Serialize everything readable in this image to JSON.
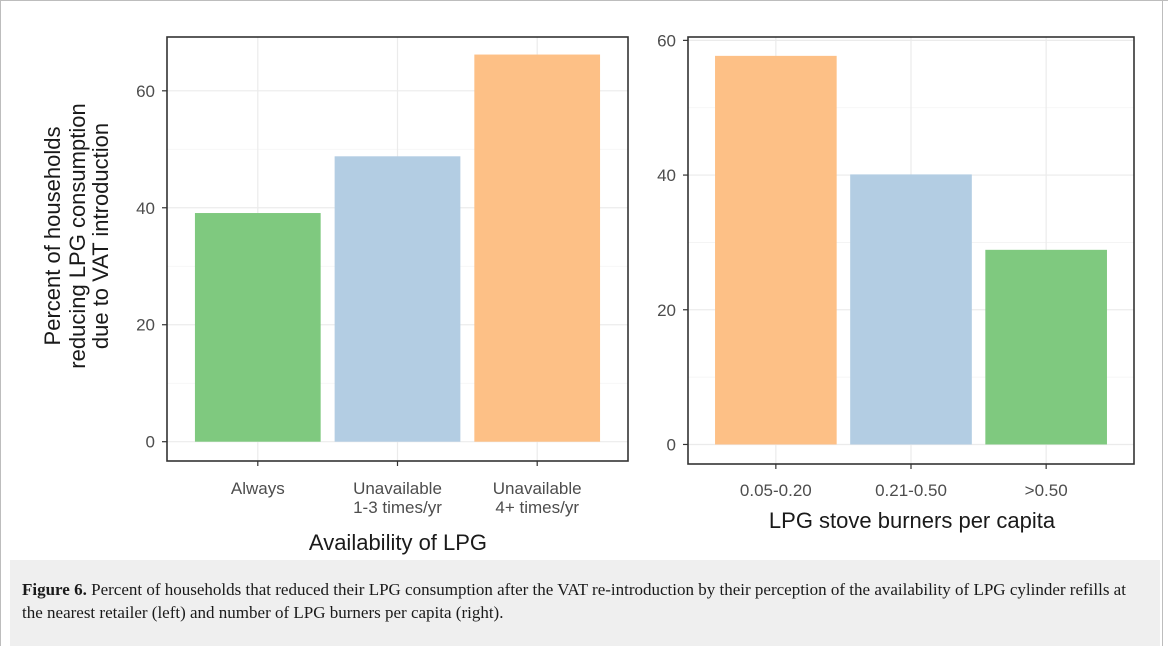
{
  "chart_data": [
    {
      "type": "bar",
      "title": "",
      "xlabel": "Availability of LPG",
      "ylabel": [
        "Percent of households",
        "reducing LPG consumption",
        "due to VAT introduction"
      ],
      "ylim": [
        -3.3,
        69.2
      ],
      "yticks": [
        0,
        20,
        40,
        60
      ],
      "grid": true,
      "categories": [
        [
          "Always"
        ],
        [
          "Unavailable",
          "1-3 times/yr"
        ],
        [
          "Unavailable",
          "4+ times/yr"
        ]
      ],
      "values": [
        39.1,
        48.8,
        66.2
      ],
      "colors": [
        "#7fc97f",
        "#b3cde3",
        "#fdc086"
      ]
    },
    {
      "type": "bar",
      "title": "",
      "xlabel": "LPG stove burners per capita",
      "ylabel": [],
      "ylim": [
        -2.9,
        60.5
      ],
      "yticks": [
        0,
        20,
        40,
        60
      ],
      "grid": true,
      "categories": [
        [
          "0.05-0.20"
        ],
        [
          "0.21-0.50"
        ],
        [
          ">0.50"
        ]
      ],
      "values": [
        57.7,
        40.1,
        28.9
      ],
      "colors": [
        "#fdc086",
        "#b3cde3",
        "#7fc97f"
      ]
    }
  ],
  "caption": {
    "label": "Figure 6.",
    "text": " Percent of households that reduced their LPG consumption after the VAT re-introduction by their perception of the availability of LPG cylinder refills at the nearest retailer (left) and number of LPG burners per capita (right)."
  }
}
